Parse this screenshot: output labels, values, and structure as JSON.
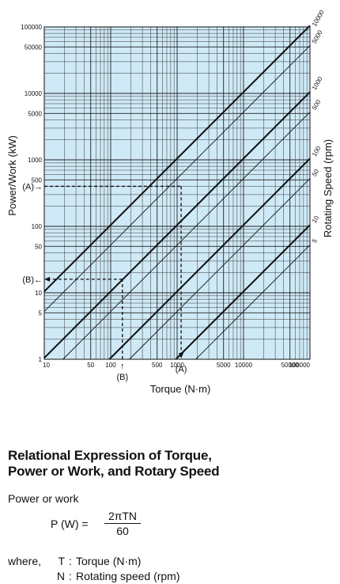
{
  "chart_data": {
    "type": "line",
    "xlabel": "Torque (N·m)",
    "ylabel": "Power/Work (kW)",
    "y2label": "Rotating Speed (rpm)",
    "xscale": "log",
    "yscale": "log",
    "xlim": [
      10,
      100000
    ],
    "ylim": [
      1,
      100000
    ],
    "x_ticks": [
      "10",
      "50",
      "100",
      "500",
      "1000",
      "5000",
      "10000",
      "50000",
      "100000"
    ],
    "y_ticks": [
      "1",
      "5",
      "10",
      "50",
      "100",
      "500",
      "1000",
      "5000",
      "10000",
      "50000",
      "100000"
    ],
    "speed_ticks": [
      "10000",
      "5000",
      "1000",
      "500",
      "100",
      "50",
      "10",
      "5"
    ],
    "series": [
      {
        "name": "10000",
        "x": [
          10,
          100000
        ],
        "y": [
          10.472,
          104720
        ],
        "bold": true
      },
      {
        "name": "5000",
        "x": [
          10,
          100000
        ],
        "y": [
          5.236,
          52360
        ],
        "bold": false
      },
      {
        "name": "1000",
        "x": [
          10,
          100000
        ],
        "y": [
          1.0472,
          10472
        ],
        "bold": true
      },
      {
        "name": "500",
        "x": [
          19.1,
          100000
        ],
        "y": [
          1,
          5236
        ],
        "bold": false
      },
      {
        "name": "100",
        "x": [
          95.5,
          100000
        ],
        "y": [
          1,
          1047.2
        ],
        "bold": true
      },
      {
        "name": "50",
        "x": [
          191,
          100000
        ],
        "y": [
          1,
          523.6
        ],
        "bold": false
      },
      {
        "name": "10",
        "x": [
          955,
          100000
        ],
        "y": [
          1,
          104.72
        ],
        "bold": true
      },
      {
        "name": "5",
        "x": [
          1910,
          100000
        ],
        "y": [
          1,
          52.36
        ],
        "bold": false
      }
    ],
    "annotations": {
      "A_label": "(A)",
      "A_arrow_label": "(A)→",
      "A_torque": 1150,
      "A_power": 400,
      "B_label": "(B)",
      "B_arrow_label": "(B)←",
      "B_torque": 150,
      "B_power": 16
    },
    "grid": true,
    "background_color": "#cfe9f6",
    "line_color": "#111111"
  },
  "formula": {
    "title_line1": "Relational Expression of Torque,",
    "title_line2": "Power or Work, and Rotary Speed",
    "label": "Power or work",
    "lhs": "P (W)  =",
    "numerator": "2πTN",
    "denominator": "60",
    "where_label": "where,",
    "t_symbol": "T",
    "t_desc": "Torque (N·m)",
    "n_symbol": "N",
    "n_desc": "Rotating speed (rpm)"
  }
}
